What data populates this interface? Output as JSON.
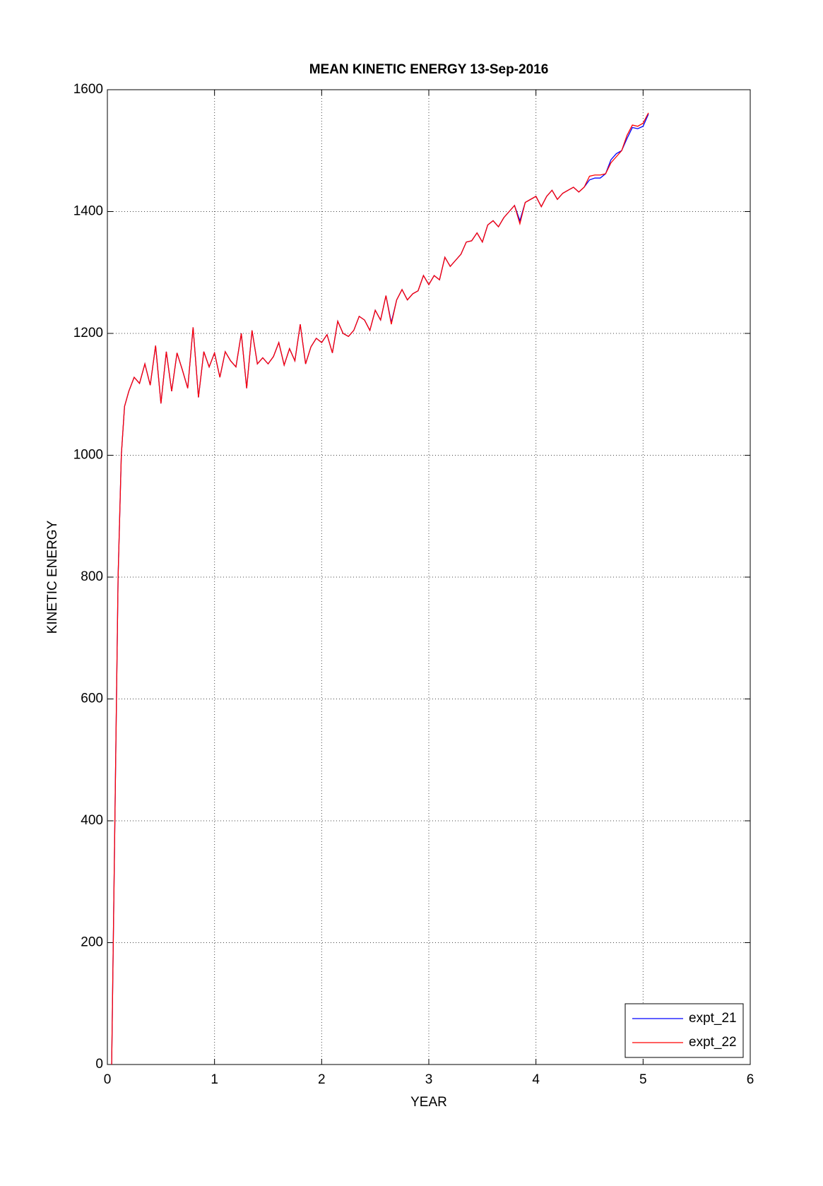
{
  "chart_data": {
    "type": "line",
    "title": "MEAN KINETIC ENERGY 13-Sep-2016",
    "x_label": "YEAR",
    "y_label": "KINETIC ENERGY",
    "x": [
      0.04,
      0.07,
      0.1,
      0.13,
      0.16,
      0.2,
      0.25,
      0.3,
      0.35,
      0.4,
      0.45,
      0.5,
      0.55,
      0.6,
      0.65,
      0.7,
      0.75,
      0.8,
      0.85,
      0.9,
      0.95,
      1.0,
      1.05,
      1.1,
      1.15,
      1.2,
      1.25,
      1.3,
      1.35,
      1.4,
      1.45,
      1.5,
      1.55,
      1.6,
      1.65,
      1.7,
      1.75,
      1.8,
      1.85,
      1.9,
      1.95,
      2.0,
      2.05,
      2.1,
      2.15,
      2.2,
      2.25,
      2.3,
      2.35,
      2.4,
      2.45,
      2.5,
      2.55,
      2.6,
      2.65,
      2.7,
      2.75,
      2.8,
      2.85,
      2.9,
      2.95,
      3.0,
      3.05,
      3.1,
      3.15,
      3.2,
      3.25,
      3.3,
      3.35,
      3.4,
      3.45,
      3.5,
      3.55,
      3.6,
      3.65,
      3.7,
      3.75,
      3.8,
      3.85,
      3.9,
      3.95,
      4.0,
      4.05,
      4.1,
      4.15,
      4.2,
      4.25,
      4.3,
      4.35,
      4.4,
      4.45,
      4.5,
      4.55,
      4.6,
      4.65,
      4.7,
      4.75,
      4.8,
      4.85,
      4.9,
      4.95,
      5.0,
      5.05
    ],
    "series": [
      {
        "name": "expt_21",
        "color": "#0000ff",
        "values": [
          0,
          400,
          800,
          1000,
          1080,
          1105,
          1128,
          1118,
          1150,
          1115,
          1180,
          1085,
          1170,
          1105,
          1168,
          1140,
          1110,
          1210,
          1095,
          1170,
          1145,
          1168,
          1128,
          1170,
          1155,
          1145,
          1200,
          1110,
          1205,
          1150,
          1160,
          1150,
          1162,
          1185,
          1148,
          1175,
          1155,
          1215,
          1150,
          1178,
          1192,
          1185,
          1198,
          1168,
          1220,
          1200,
          1195,
          1205,
          1228,
          1222,
          1205,
          1238,
          1222,
          1262,
          1218,
          1255,
          1272,
          1255,
          1265,
          1270,
          1295,
          1280,
          1295,
          1288,
          1325,
          1310,
          1320,
          1330,
          1350,
          1352,
          1365,
          1350,
          1378,
          1385,
          1375,
          1390,
          1400,
          1410,
          1385,
          1415,
          1420,
          1425,
          1408,
          1425,
          1435,
          1420,
          1430,
          1435,
          1440,
          1432,
          1440,
          1452,
          1455,
          1455,
          1462,
          1485,
          1495,
          1500,
          1520,
          1538,
          1536,
          1540,
          1560
        ]
      },
      {
        "name": "expt_22",
        "color": "#ff0000",
        "values": [
          0,
          400,
          800,
          1000,
          1080,
          1105,
          1128,
          1118,
          1150,
          1115,
          1180,
          1085,
          1170,
          1105,
          1168,
          1140,
          1110,
          1210,
          1095,
          1170,
          1145,
          1168,
          1128,
          1170,
          1155,
          1145,
          1200,
          1110,
          1205,
          1150,
          1160,
          1150,
          1162,
          1185,
          1148,
          1175,
          1155,
          1215,
          1150,
          1178,
          1192,
          1185,
          1198,
          1168,
          1220,
          1200,
          1195,
          1205,
          1228,
          1222,
          1205,
          1238,
          1222,
          1262,
          1215,
          1255,
          1272,
          1255,
          1265,
          1270,
          1295,
          1280,
          1295,
          1288,
          1325,
          1310,
          1320,
          1330,
          1350,
          1352,
          1365,
          1350,
          1378,
          1385,
          1375,
          1390,
          1400,
          1410,
          1380,
          1415,
          1420,
          1425,
          1408,
          1425,
          1435,
          1420,
          1430,
          1435,
          1440,
          1432,
          1440,
          1458,
          1460,
          1460,
          1462,
          1480,
          1490,
          1500,
          1525,
          1542,
          1540,
          1545,
          1562
        ]
      }
    ],
    "xlim": [
      0,
      6
    ],
    "xticks": [
      0,
      1,
      2,
      3,
      4,
      5,
      6
    ],
    "ylim": [
      0,
      1600
    ],
    "yticks": [
      0,
      200,
      400,
      600,
      800,
      1000,
      1200,
      1400,
      1600
    ],
    "grid": true,
    "legend": "lower right"
  }
}
